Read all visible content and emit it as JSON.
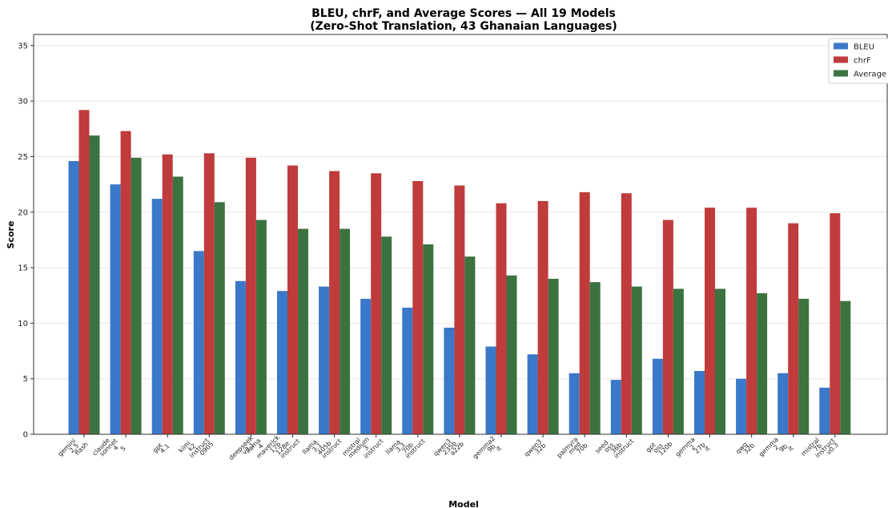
{
  "chart_data": {
    "type": "bar",
    "title_line1": "BLEU, chrF, and Average Scores — All 19 Models",
    "title_line2": "(Zero-Shot Translation, 43 Ghanaian Languages)",
    "xlabel": "Model",
    "ylabel": "Score",
    "ylim": [
      0,
      36
    ],
    "yticks": [
      0,
      5,
      10,
      15,
      20,
      25,
      30,
      35
    ],
    "grid": "horizontal",
    "legend_position": "top-right",
    "categories": [
      "gemini\n2.5\nflash",
      "claude\nsonnet\n4\n5",
      "gpt\n4.1",
      "kimi\nk2\ninstruct\n0905",
      "deepseek\nv3.1",
      "llama\n4\nmaverick\n17b\n128e\ninstruct",
      "llama\n3.1\n405b\ninstruct",
      "mistral\nmedium\n3\ninstruct",
      "llama\n3.3\n70b\ninstruct",
      "qwen3\n235b\na22b",
      "gemma2\n9b\nit",
      "qwen3\n32b",
      "palmyra\nmed\n70b",
      "seed\noss\n36b\ninstruct",
      "gpt\noss\n120b",
      "gemma\n2\n27b\nit",
      "qwq\n32b",
      "gemma\n2\n9b\nit",
      "mistral\n7b\ninstruct\nv0.3"
    ],
    "series": [
      {
        "name": "BLEU",
        "color": "#3a78c9",
        "values": [
          24.6,
          22.5,
          21.2,
          16.5,
          13.8,
          12.9,
          13.3,
          12.2,
          11.4,
          9.6,
          7.9,
          7.2,
          5.5,
          4.9,
          6.8,
          5.7,
          5.0,
          5.5,
          4.2
        ]
      },
      {
        "name": "chrF",
        "color": "#c03b3b",
        "values": [
          29.2,
          27.3,
          25.2,
          25.3,
          24.9,
          24.2,
          23.7,
          23.5,
          22.8,
          22.4,
          20.8,
          21.0,
          21.8,
          21.7,
          19.3,
          20.4,
          20.4,
          19.0,
          19.9
        ]
      },
      {
        "name": "Average",
        "color": "#3b7340",
        "values": [
          26.9,
          24.9,
          23.2,
          20.9,
          19.3,
          18.5,
          18.5,
          17.8,
          17.1,
          16.0,
          14.3,
          14.0,
          13.7,
          13.3,
          13.1,
          13.1,
          12.7,
          12.2,
          12.0
        ]
      }
    ]
  }
}
